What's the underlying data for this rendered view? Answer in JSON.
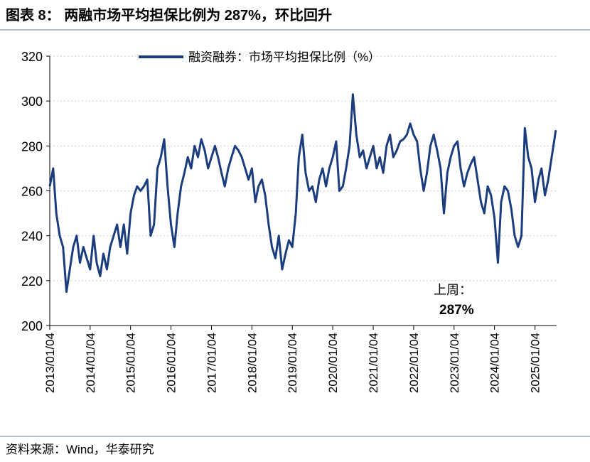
{
  "chart_data": {
    "type": "line",
    "title": "图表 8： 两融市场平均担保比例为 287%，环比回升",
    "source": "资料来源：Wind，华泰研究",
    "annotations": [
      "上周：",
      "287%"
    ],
    "xlim": [
      "2013/01/04",
      "2025/07/18"
    ],
    "xticks": [
      "2013/01/04",
      "2014/01/04",
      "2015/01/04",
      "2016/01/04",
      "2017/01/04",
      "2018/01/04",
      "2019/01/04",
      "2020/01/04",
      "2021/01/04",
      "2022/01/04",
      "2023/01/04",
      "2024/01/04",
      "2025/01/04"
    ],
    "ylim": [
      200,
      320
    ],
    "yticks": [
      200,
      220,
      240,
      260,
      280,
      300,
      320
    ],
    "grid": true,
    "legend": "top",
    "x": [
      "2013/01/04",
      "2013/02/04",
      "2013/03/04",
      "2013/04/04",
      "2013/05/04",
      "2013/06/04",
      "2013/07/04",
      "2013/08/04",
      "2013/09/04",
      "2013/10/04",
      "2013/11/04",
      "2013/12/04",
      "2014/01/04",
      "2014/02/04",
      "2014/03/04",
      "2014/04/04",
      "2014/05/04",
      "2014/06/04",
      "2014/07/04",
      "2014/08/04",
      "2014/09/04",
      "2014/10/04",
      "2014/11/04",
      "2014/12/04",
      "2015/01/04",
      "2015/02/04",
      "2015/03/04",
      "2015/04/04",
      "2015/05/04",
      "2015/06/04",
      "2015/07/04",
      "2015/08/04",
      "2015/09/04",
      "2015/10/04",
      "2015/11/04",
      "2015/12/04",
      "2016/01/04",
      "2016/02/04",
      "2016/03/04",
      "2016/04/04",
      "2016/05/04",
      "2016/06/04",
      "2016/07/04",
      "2016/08/04",
      "2016/09/04",
      "2016/10/04",
      "2016/11/04",
      "2016/12/04",
      "2017/01/04",
      "2017/02/04",
      "2017/03/04",
      "2017/04/04",
      "2017/05/04",
      "2017/06/04",
      "2017/07/04",
      "2017/08/04",
      "2017/09/04",
      "2017/10/04",
      "2017/11/04",
      "2017/12/04",
      "2018/01/04",
      "2018/02/04",
      "2018/03/04",
      "2018/04/04",
      "2018/05/04",
      "2018/06/04",
      "2018/07/04",
      "2018/08/04",
      "2018/09/04",
      "2018/10/04",
      "2018/11/04",
      "2018/12/04",
      "2019/01/04",
      "2019/02/04",
      "2019/03/04",
      "2019/04/04",
      "2019/05/04",
      "2019/06/04",
      "2019/07/04",
      "2019/08/04",
      "2019/09/04",
      "2019/10/04",
      "2019/11/04",
      "2019/12/04",
      "2020/01/04",
      "2020/02/04",
      "2020/03/04",
      "2020/04/04",
      "2020/05/04",
      "2020/06/04",
      "2020/07/04",
      "2020/08/04",
      "2020/09/04",
      "2020/10/04",
      "2020/11/04",
      "2020/12/04",
      "2021/01/04",
      "2021/02/04",
      "2021/03/04",
      "2021/04/04",
      "2021/05/04",
      "2021/06/04",
      "2021/07/04",
      "2021/08/04",
      "2021/09/04",
      "2021/10/04",
      "2021/11/04",
      "2021/12/04",
      "2022/01/04",
      "2022/02/04",
      "2022/03/04",
      "2022/04/04",
      "2022/05/04",
      "2022/06/04",
      "2022/07/04",
      "2022/08/04",
      "2022/09/04",
      "2022/10/04",
      "2022/11/04",
      "2022/12/04",
      "2023/01/04",
      "2023/02/04",
      "2023/03/04",
      "2023/04/04",
      "2023/05/04",
      "2023/06/04",
      "2023/07/04",
      "2023/08/04",
      "2023/09/04",
      "2023/10/04",
      "2023/11/04",
      "2023/12/04",
      "2024/01/04",
      "2024/02/04",
      "2024/03/04",
      "2024/04/04",
      "2024/05/04",
      "2024/06/04",
      "2024/07/04",
      "2024/08/04",
      "2024/09/04",
      "2024/10/04",
      "2024/11/04",
      "2024/12/04",
      "2025/01/04",
      "2025/02/04",
      "2025/03/04",
      "2025/04/04",
      "2025/05/04",
      "2025/06/04",
      "2025/07/11"
    ],
    "series": [
      {
        "name": "融资融券：市场平均担保比例（%）",
        "color": "#1b3d7d",
        "values": [
          262,
          270,
          250,
          240,
          235,
          215,
          225,
          235,
          240,
          228,
          235,
          230,
          225,
          240,
          228,
          222,
          232,
          225,
          235,
          240,
          245,
          235,
          245,
          232,
          250,
          258,
          262,
          260,
          262,
          265,
          240,
          245,
          270,
          275,
          283,
          262,
          245,
          235,
          250,
          262,
          268,
          275,
          270,
          280,
          275,
          283,
          278,
          270,
          275,
          280,
          275,
          268,
          262,
          270,
          275,
          280,
          278,
          275,
          270,
          265,
          270,
          255,
          262,
          265,
          258,
          245,
          235,
          230,
          240,
          225,
          232,
          238,
          235,
          250,
          275,
          285,
          268,
          260,
          262,
          255,
          265,
          270,
          262,
          270,
          275,
          282,
          260,
          262,
          270,
          280,
          303,
          285,
          275,
          278,
          270,
          275,
          280,
          270,
          275,
          268,
          280,
          285,
          275,
          278,
          282,
          283,
          285,
          290,
          285,
          282,
          270,
          260,
          268,
          280,
          285,
          278,
          270,
          250,
          268,
          275,
          280,
          282,
          270,
          262,
          268,
          272,
          275,
          265,
          255,
          250,
          262,
          258,
          248,
          228,
          255,
          262,
          260,
          252,
          240,
          235,
          240,
          288,
          275,
          270,
          255,
          265,
          270,
          258,
          265,
          275,
          287
        ]
      }
    ]
  }
}
